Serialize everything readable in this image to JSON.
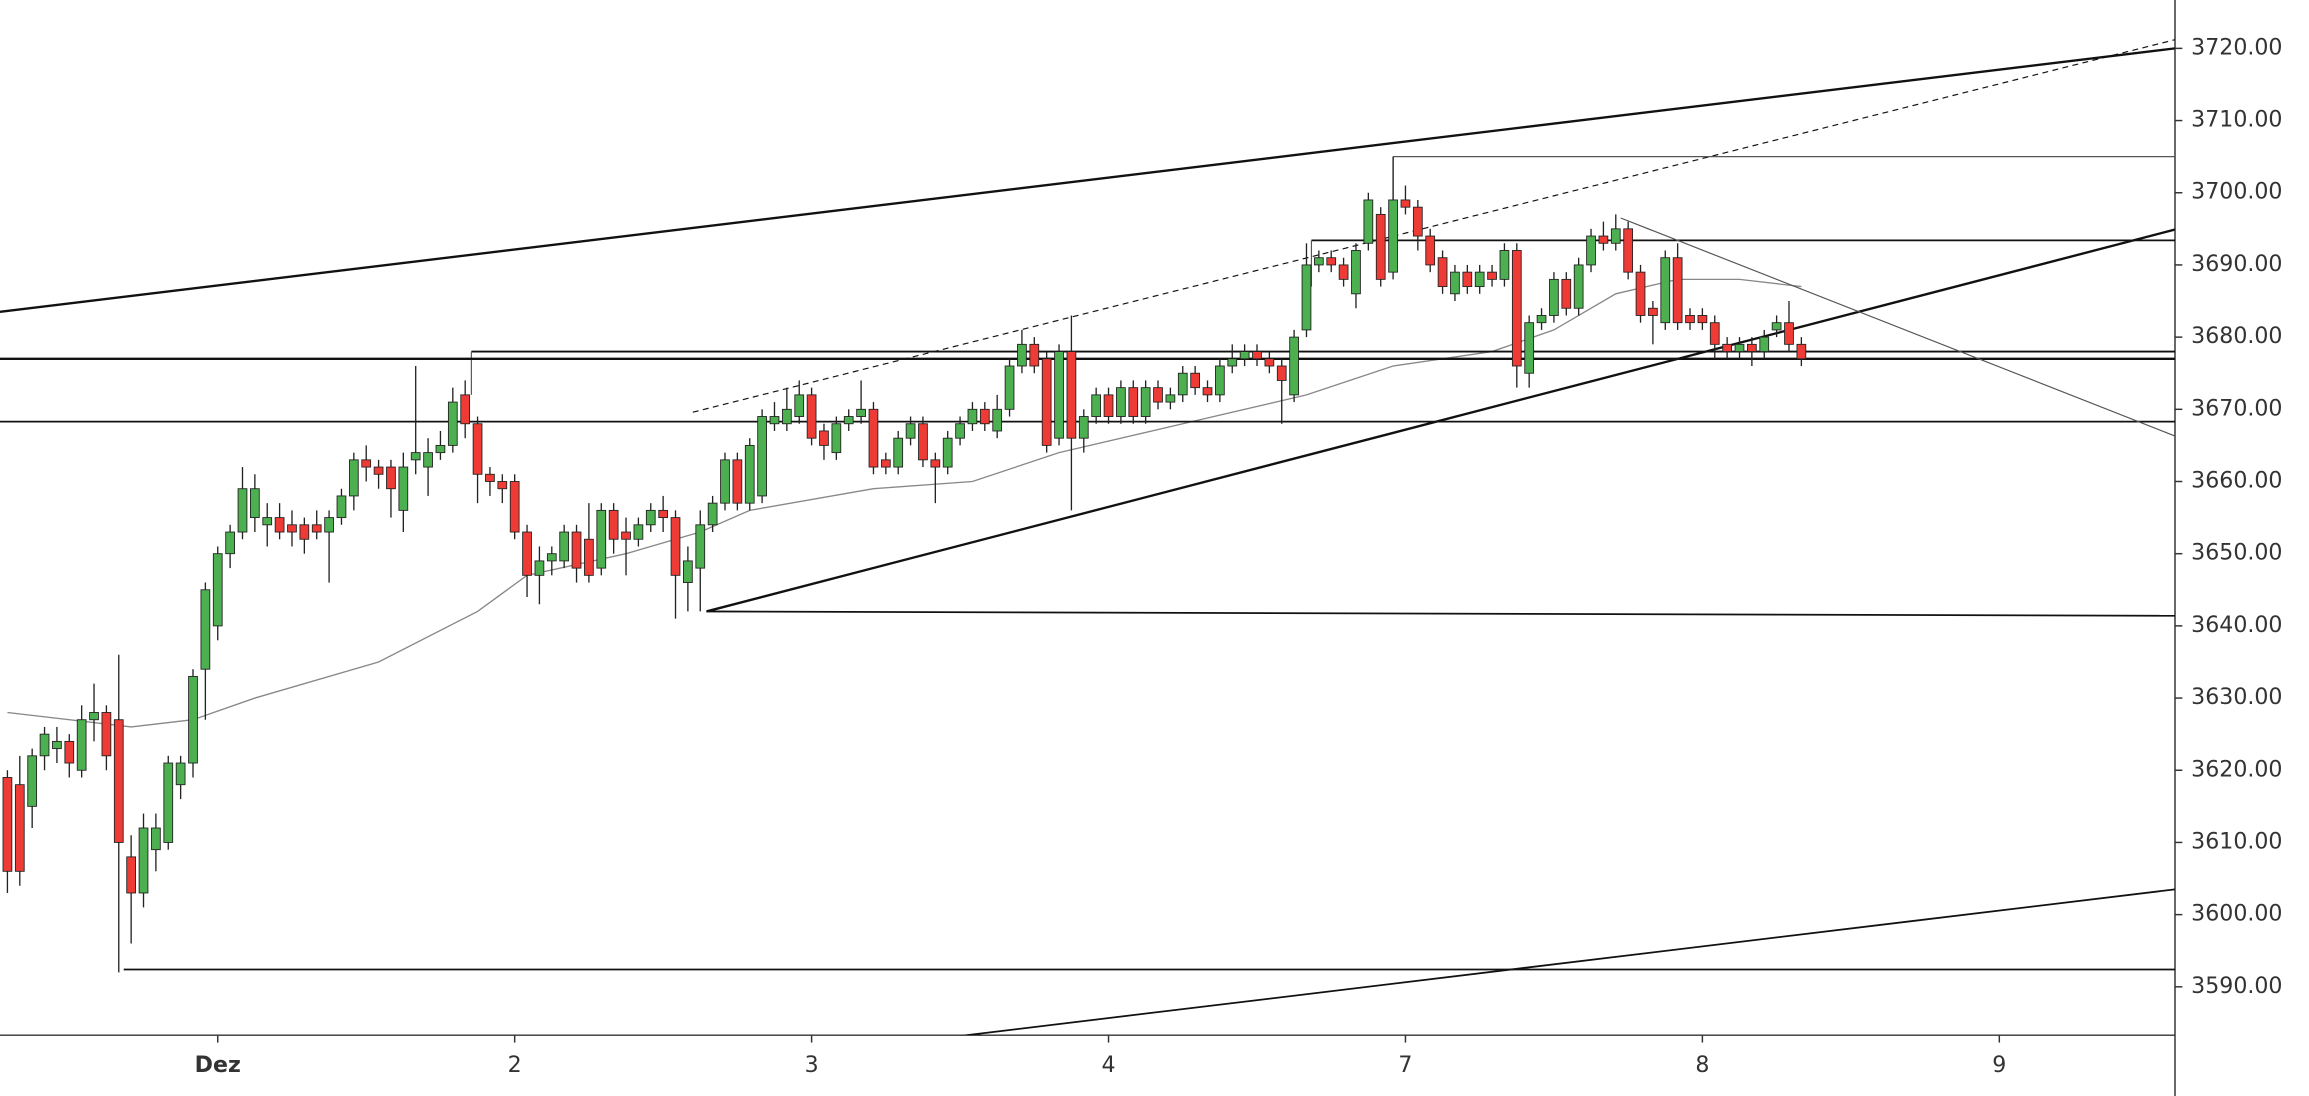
{
  "chart_data": {
    "type": "candlestick",
    "x": [
      0,
      1,
      2,
      3,
      4,
      5,
      6,
      7,
      8,
      9,
      10,
      11,
      12,
      13,
      14,
      15,
      16,
      17,
      18,
      19,
      20,
      21,
      22,
      23,
      24,
      25,
      26,
      27,
      28,
      29,
      30,
      31,
      32,
      33,
      34,
      35,
      36,
      37,
      38,
      39,
      40,
      41,
      42,
      43,
      44,
      45,
      46,
      47,
      48,
      49,
      50,
      51,
      52,
      53,
      54,
      55,
      56,
      57,
      58,
      59,
      60,
      61,
      62,
      63,
      64,
      65,
      66,
      67,
      68,
      69,
      70,
      71,
      72,
      73,
      74,
      75,
      76,
      77,
      78,
      79,
      80,
      81,
      82,
      83,
      84,
      85,
      86,
      87,
      88,
      89,
      90,
      91,
      92,
      93,
      94,
      95,
      96,
      97,
      98,
      99,
      100,
      101,
      102,
      103,
      104,
      105,
      106,
      107,
      108,
      109,
      110,
      111,
      112,
      113,
      114,
      115,
      116,
      117,
      118,
      119,
      120,
      121,
      122,
      123,
      124,
      125,
      126,
      127,
      128,
      129,
      130,
      131,
      132,
      133,
      134,
      135,
      136,
      137,
      138,
      139,
      140,
      141,
      142,
      143,
      144,
      145
    ],
    "open": [
      3619,
      3618,
      3615,
      3622,
      3623,
      3624,
      3620,
      3627,
      3628,
      3627,
      3608,
      3603,
      3609,
      3610,
      3618,
      3621,
      3634,
      3640,
      3650,
      3653,
      3655,
      3654,
      3655,
      3654,
      3654,
      3654,
      3653,
      3655,
      3658,
      3663,
      3662,
      3662,
      3656,
      3663,
      3662,
      3664,
      3665,
      3672,
      3668,
      3661,
      3660,
      3660,
      3653,
      3647,
      3649,
      3649,
      3653,
      3652,
      3648,
      3656,
      3653,
      3652,
      3654,
      3656,
      3655,
      3646,
      3648,
      3654,
      3657,
      3663,
      3657,
      3658,
      3668,
      3668,
      3669,
      3672,
      3667,
      3664,
      3668,
      3669,
      3670,
      3663,
      3662,
      3666,
      3668,
      3663,
      3662,
      3666,
      3668,
      3670,
      3667,
      3670,
      3676,
      3679,
      3677,
      3666,
      3678,
      3666,
      3669,
      3672,
      3669,
      3673,
      3669,
      3673,
      3671,
      3672,
      3675,
      3673,
      3672,
      3676,
      3677,
      3678,
      3677,
      3676,
      3672,
      3681,
      3690,
      3691,
      3690,
      3686,
      3693,
      3697,
      3689,
      3699,
      3698,
      3694,
      3691,
      3686,
      3689,
      3687,
      3689,
      3688,
      3692,
      3675,
      3682,
      3683,
      3688,
      3684,
      3690,
      3694,
      3693,
      3695,
      3689,
      3684,
      3682,
      3691,
      3683,
      3683,
      3682,
      3679,
      3678,
      3679,
      3678,
      3681,
      3682,
      3679
    ],
    "high": [
      3620,
      3622,
      3623,
      3626,
      3626,
      3625,
      3629,
      3632,
      3629,
      3636,
      3611,
      3614,
      3614,
      3622,
      3622,
      3634,
      3646,
      3651,
      3654,
      3662,
      3661,
      3657,
      3657,
      3656,
      3655,
      3656,
      3656,
      3659,
      3664,
      3665,
      3663,
      3663,
      3664,
      3676,
      3666,
      3667,
      3673,
      3674,
      3669,
      3662,
      3661,
      3661,
      3654,
      3651,
      3651,
      3654,
      3654,
      3657,
      3657,
      3657,
      3655,
      3655,
      3657,
      3658,
      3656,
      3651,
      3656,
      3658,
      3664,
      3664,
      3666,
      3670,
      3671,
      3673,
      3674,
      3673,
      3668,
      3669,
      3670,
      3674,
      3671,
      3664,
      3667,
      3669,
      3669,
      3664,
      3667,
      3669,
      3671,
      3671,
      3672,
      3677,
      3681,
      3680,
      3678,
      3679,
      3683,
      3670,
      3673,
      3673,
      3674,
      3674,
      3674,
      3674,
      3673,
      3676,
      3676,
      3674,
      3677,
      3679,
      3679,
      3679,
      3678,
      3677,
      3681,
      3693,
      3692,
      3692,
      3691,
      3693,
      3700,
      3698,
      3705,
      3701,
      3699,
      3695,
      3692,
      3690,
      3690,
      3690,
      3690,
      3693,
      3693,
      3683,
      3684,
      3689,
      3689,
      3691,
      3695,
      3696,
      3697,
      3696,
      3690,
      3685,
      3692,
      3693,
      3684,
      3684,
      3683,
      3680,
      3680,
      3680,
      3681,
      3683,
      3685,
      3680
    ],
    "low": [
      3603,
      3604,
      3612,
      3620,
      3621,
      3619,
      3619,
      3624,
      3620,
      3592,
      3596,
      3601,
      3606,
      3609,
      3616,
      3619,
      3627,
      3638,
      3648,
      3652,
      3653,
      3651,
      3652,
      3651,
      3650,
      3652,
      3646,
      3654,
      3656,
      3660,
      3659,
      3655,
      3653,
      3661,
      3658,
      3663,
      3664,
      3666,
      3657,
      3658,
      3657,
      3652,
      3644,
      3643,
      3647,
      3648,
      3646,
      3646,
      3647,
      3650,
      3647,
      3651,
      3653,
      3653,
      3641,
      3642,
      3642,
      3653,
      3656,
      3656,
      3656,
      3657,
      3667,
      3667,
      3668,
      3665,
      3663,
      3663,
      3667,
      3668,
      3661,
      3661,
      3661,
      3665,
      3662,
      3657,
      3661,
      3665,
      3667,
      3667,
      3666,
      3669,
      3675,
      3675,
      3664,
      3665,
      3656,
      3664,
      3668,
      3668,
      3668,
      3668,
      3668,
      3670,
      3670,
      3671,
      3672,
      3671,
      3671,
      3675,
      3676,
      3676,
      3675,
      3668,
      3671,
      3680,
      3689,
      3689,
      3687,
      3684,
      3692,
      3687,
      3688,
      3697,
      3692,
      3689,
      3686,
      3685,
      3686,
      3686,
      3687,
      3687,
      3673,
      3673,
      3681,
      3682,
      3683,
      3683,
      3689,
      3692,
      3692,
      3688,
      3682,
      3679,
      3681,
      3681,
      3681,
      3681,
      3677,
      3677,
      3677,
      3676,
      3677,
      3680,
      3678,
      3676
    ],
    "close": [
      3606,
      3606,
      3622,
      3625,
      3624,
      3621,
      3627,
      3628,
      3622,
      3610,
      3603,
      3612,
      3612,
      3621,
      3621,
      3633,
      3645,
      3650,
      3653,
      3659,
      3659,
      3655,
      3653,
      3653,
      3652,
      3653,
      3655,
      3658,
      3663,
      3662,
      3661,
      3659,
      3662,
      3664,
      3664,
      3665,
      3671,
      3668,
      3661,
      3660,
      3659,
      3653,
      3647,
      3649,
      3650,
      3653,
      3648,
      3647,
      3656,
      3652,
      3652,
      3654,
      3656,
      3655,
      3647,
      3649,
      3654,
      3657,
      3663,
      3657,
      3665,
      3669,
      3669,
      3670,
      3672,
      3666,
      3665,
      3668,
      3669,
      3670,
      3662,
      3662,
      3666,
      3668,
      3663,
      3662,
      3666,
      3668,
      3670,
      3668,
      3670,
      3676,
      3679,
      3676,
      3665,
      3678,
      3666,
      3669,
      3672,
      3669,
      3673,
      3669,
      3673,
      3671,
      3672,
      3675,
      3673,
      3672,
      3676,
      3677,
      3678,
      3677,
      3676,
      3674,
      3680,
      3690,
      3691,
      3690,
      3688,
      3692,
      3699,
      3688,
      3699,
      3698,
      3694,
      3690,
      3687,
      3689,
      3687,
      3689,
      3688,
      3692,
      3676,
      3682,
      3683,
      3688,
      3684,
      3690,
      3694,
      3693,
      3695,
      3689,
      3683,
      3683,
      3691,
      3682,
      3682,
      3682,
      3679,
      3678,
      3679,
      3678,
      3680,
      3682,
      3679,
      3677
    ],
    "up_color": "#4caf50",
    "down_color": "#ef3b36",
    "moving_average": {
      "x": [
        0,
        10,
        15,
        20,
        30,
        38,
        42,
        50,
        56,
        60,
        70,
        78,
        85,
        95,
        105,
        112,
        120,
        125,
        130,
        135,
        140,
        145
      ],
      "values": [
        3628,
        3626,
        3627,
        3630,
        3635,
        3642,
        3647,
        3650,
        3653,
        3656,
        3659,
        3660,
        3664,
        3668,
        3672,
        3676,
        3678,
        3681,
        3686,
        3688,
        3688,
        3687
      ],
      "color": "#888888"
    },
    "drawings": [
      {
        "x": [
          -0.6,
          175.2
        ],
        "y": [
          3683.5,
          3720
        ],
        "style": "thick"
      },
      {
        "x": [
          55.4,
          175.2
        ],
        "y": [
          3669.6,
          3721.2
        ],
        "style": "dashed"
      },
      {
        "x": [
          112,
          175.2
        ],
        "y": [
          3705,
          3705
        ],
        "style": "thin"
      },
      {
        "x": [
          112,
          112
        ],
        "y": [
          3693.4,
          3705
        ],
        "style": "thin"
      },
      {
        "x": [
          105.4,
          175.2
        ],
        "y": [
          3693.4,
          3693.4
        ],
        "style": "medium"
      },
      {
        "x": [
          105.4,
          105.4
        ],
        "y": [
          3687,
          3693.4
        ],
        "style": "thin"
      },
      {
        "x": [
          37.5,
          175.2
        ],
        "y": [
          3678,
          3678
        ],
        "style": "medium"
      },
      {
        "x": [
          37.5,
          37.5
        ],
        "y": [
          3672,
          3678
        ],
        "style": "thin"
      },
      {
        "x": [
          -0.6,
          175.2
        ],
        "y": [
          3677,
          3677
        ],
        "style": "thick"
      },
      {
        "x": [
          -0.6,
          175.2
        ],
        "y": [
          3668.3,
          3668.3
        ],
        "style": "medium"
      },
      {
        "x": [
          56.5,
          175.2
        ],
        "y": [
          3642,
          3694.9
        ],
        "style": "thick"
      },
      {
        "x": [
          56.5,
          175.2
        ],
        "y": [
          3642,
          3641.4
        ],
        "style": "medium"
      },
      {
        "x": [
          130.4,
          175.2
        ],
        "y": [
          3696.5,
          3666.3
        ],
        "style": "thin"
      },
      {
        "x": [
          9.4,
          175.2
        ],
        "y": [
          3592.4,
          3592.4
        ],
        "style": "medium"
      },
      {
        "x": [
          75.6,
          175.2
        ],
        "y": [
          3582.9,
          3603.5
        ],
        "style": "medium"
      }
    ],
    "xlim": [
      -0.6,
      175.2
    ],
    "xticks": [
      {
        "value": 17,
        "label": "Dez"
      },
      {
        "value": 41,
        "label": "2"
      },
      {
        "value": 65,
        "label": "3"
      },
      {
        "value": 89,
        "label": "4"
      },
      {
        "value": 113,
        "label": "7"
      },
      {
        "value": 137,
        "label": "8"
      },
      {
        "value": 161,
        "label": "9"
      }
    ],
    "ylim": [
      3583.3,
      3726.7
    ],
    "yticks": [
      {
        "value": 3590,
        "label": "3590.00"
      },
      {
        "value": 3600,
        "label": "3600.00"
      },
      {
        "value": 3610,
        "label": "3610.00"
      },
      {
        "value": 3620,
        "label": "3620.00"
      },
      {
        "value": 3630,
        "label": "3630.00"
      },
      {
        "value": 3640,
        "label": "3640.00"
      },
      {
        "value": 3650,
        "label": "3650.00"
      },
      {
        "value": 3660,
        "label": "3660.00"
      },
      {
        "value": 3670,
        "label": "3670.00"
      },
      {
        "value": 3680,
        "label": "3680.00"
      },
      {
        "value": 3690,
        "label": "3690.00"
      },
      {
        "value": 3700,
        "label": "3700.00"
      },
      {
        "value": 3710,
        "label": "3710.00"
      },
      {
        "value": 3720,
        "label": "3720.00"
      }
    ]
  }
}
